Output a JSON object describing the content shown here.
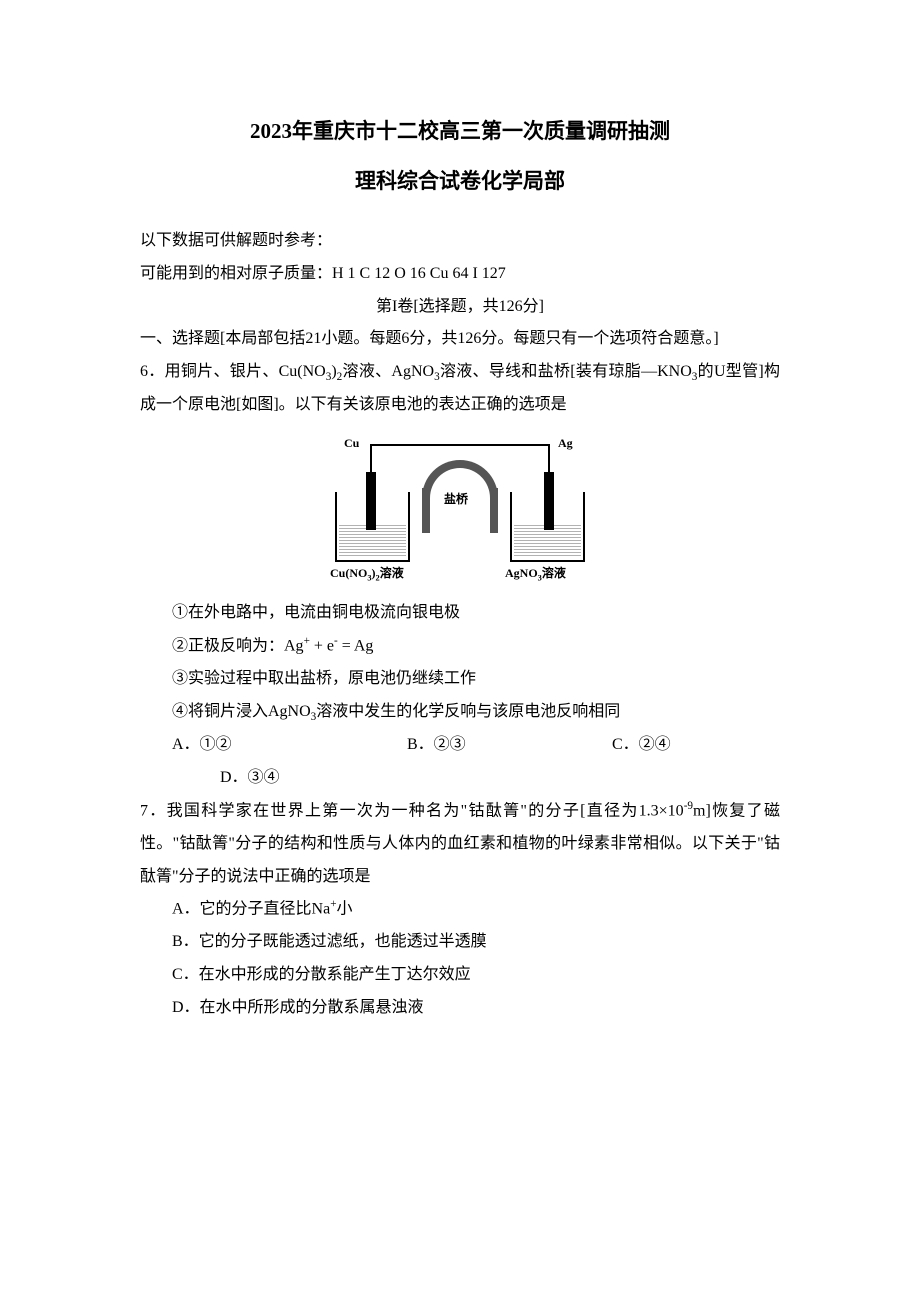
{
  "title_main": "2023年重庆市十二校高三第一次质量调研抽测",
  "title_sub": "理科综合试卷化学局部",
  "intro_line1": "以下数据可供解题时参考：",
  "intro_line2": "可能用到的相对原子质量：H 1  C 12  O 16  Cu 64  I 127",
  "section_header": "第I卷[选择题，共126分]",
  "section_intro": "一、选择题[本局部包括21小题。每题6分，共126分。每题只有一个选项符合题意。]",
  "q6": {
    "stem_part1": "6．用铜片、银片、Cu(NO",
    "stem_sub1": "3",
    "stem_part2": ")",
    "stem_sub2": "2",
    "stem_part3": "溶液、AgNO",
    "stem_sub3": "3",
    "stem_part4": "溶液、导线和盐桥[装有琼脂—KNO",
    "stem_sub4": "3",
    "stem_part5": "的U型管]构成一个原电池[如图]。以下有关该原电池的表达正确的选项是",
    "diagram": {
      "label_cu": "Cu",
      "label_ag": "Ag",
      "label_bridge": "盐桥",
      "label_sol_left_1": "Cu(NO",
      "label_sol_left_sub1": "3",
      "label_sol_left_2": ")",
      "label_sol_left_sub2": "2",
      "label_sol_left_3": "溶液",
      "label_sol_right_1": "AgNO",
      "label_sol_right_sub": "3",
      "label_sol_right_2": "溶液"
    },
    "item1": "①在外电路中，电流由铜电极流向银电极",
    "item2_p1": "②正极反响为：Ag",
    "item2_sup1": "+",
    "item2_p2": " + e",
    "item2_sup2": "-",
    "item2_p3": " = Ag",
    "item3": "③实验过程中取出盐桥，原电池仍继续工作",
    "item4_p1": "④将铜片浸入AgNO",
    "item4_sub": "3",
    "item4_p2": "溶液中发生的化学反响与该原电池反响相同",
    "optA": "A．①②",
    "optB": "B．②③",
    "optC": "C．②④",
    "optD": "D．③④"
  },
  "q7": {
    "stem_p1": "7．我国科学家在世界上第一次为一种名为\"钴酞箐\"的分子[直径为1.3×10",
    "stem_sup1": "-9",
    "stem_p2": "m]恢复了磁性。\"钴酞箐\"分子的结构和性质与人体内的血红素和植物的叶绿素非常相似。以下关于\"钴酞箐\"分子的说法中正确的选项是",
    "optA_p1": "A．它的分子直径比Na",
    "optA_sup": "+",
    "optA_p2": "小",
    "optB": "B．它的分子既能透过滤纸，也能透过半透膜",
    "optC": "C．在水中形成的分散系能产生丁达尔效应",
    "optD": "D．在水中所形成的分散系属悬浊液"
  }
}
